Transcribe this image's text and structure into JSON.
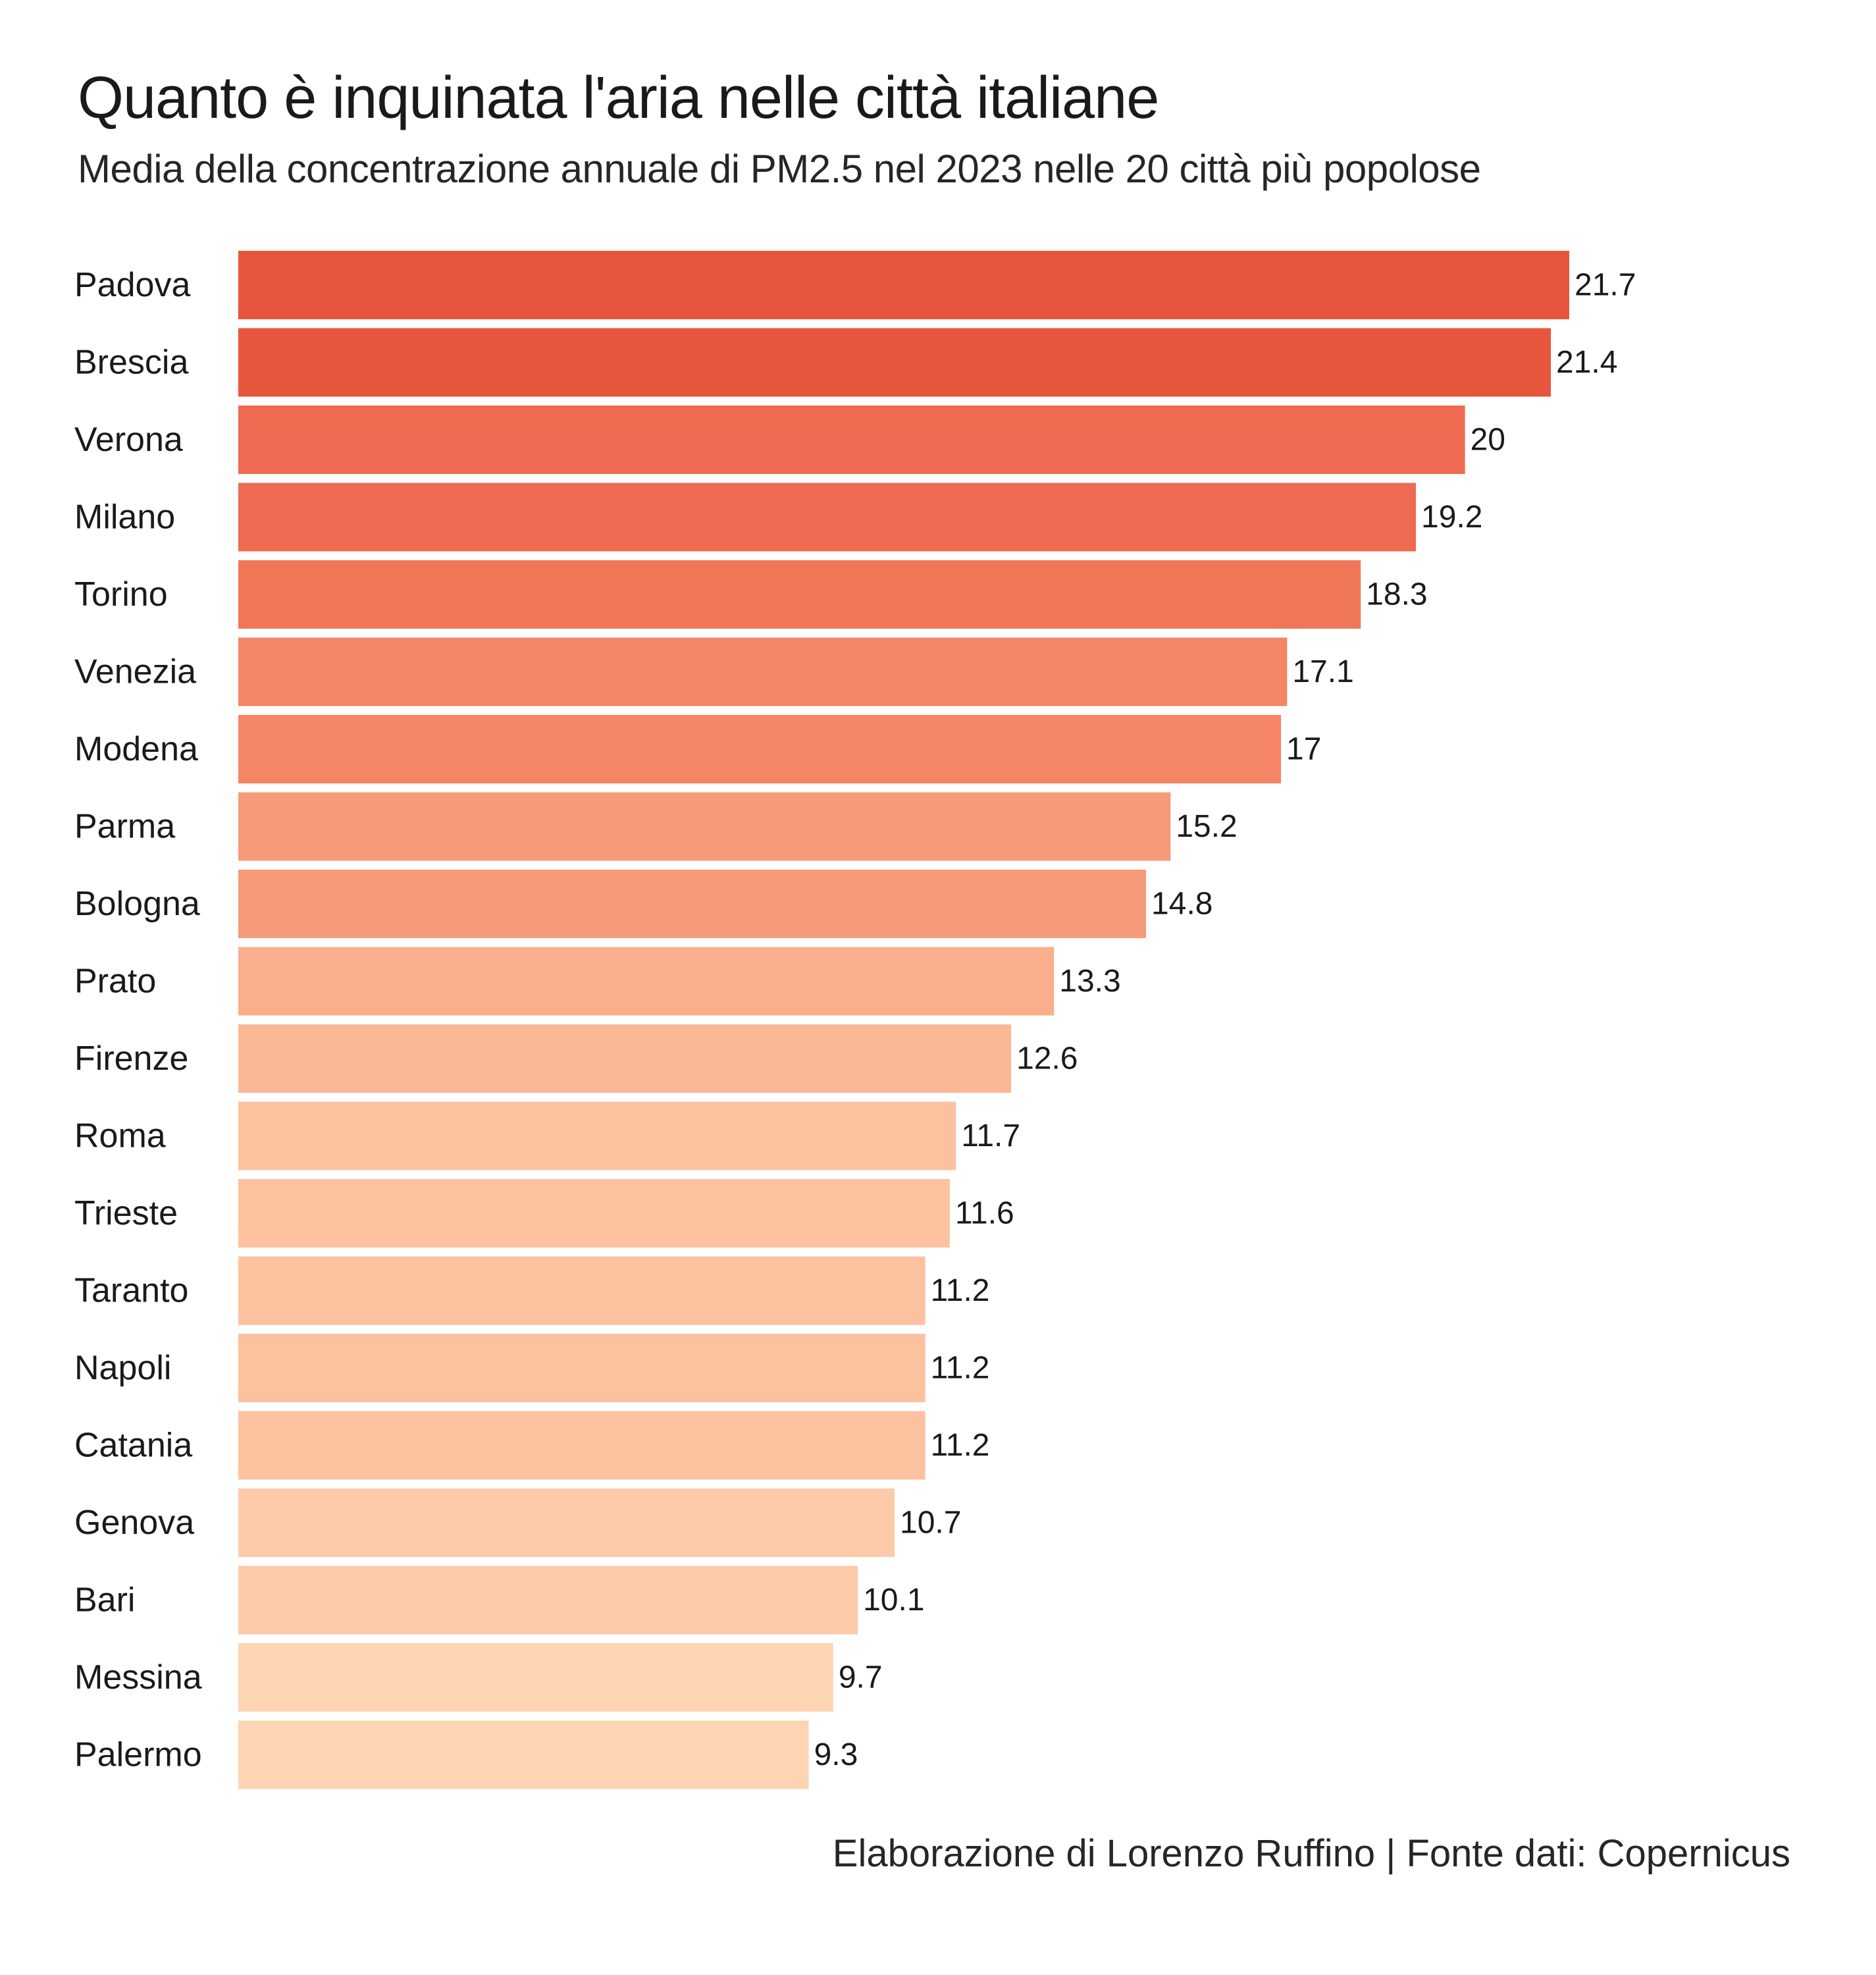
{
  "title": "Quanto è inquinata l'aria nelle città italiane",
  "subtitle": "Media della concentrazione annuale di PM2.5 nel 2023 nelle 20 città più popolose",
  "caption": "Elaborazione di Lorenzo Ruffino | Fonte dati: Copernicus",
  "chart_data": {
    "type": "bar",
    "orientation": "horizontal",
    "title": "Quanto è inquinata l'aria nelle città italiane",
    "subtitle": "Media della concentrazione annuale di PM2.5 nel 2023 nelle 20 città più popolose",
    "xlabel": "",
    "ylabel": "",
    "grid": false,
    "legend": "none",
    "xlim": [
      0,
      21.7
    ],
    "categories": [
      "Padova",
      "Brescia",
      "Verona",
      "Milano",
      "Torino",
      "Venezia",
      "Modena",
      "Parma",
      "Bologna",
      "Prato",
      "Firenze",
      "Roma",
      "Trieste",
      "Taranto",
      "Napoli",
      "Catania",
      "Genova",
      "Bari",
      "Messina",
      "Palermo"
    ],
    "values": [
      21.7,
      21.4,
      20,
      19.2,
      18.3,
      17.1,
      17,
      15.2,
      14.8,
      13.3,
      12.6,
      11.7,
      11.6,
      11.2,
      11.2,
      11.2,
      10.7,
      10.1,
      9.7,
      9.3
    ],
    "value_labels": [
      "21.7",
      "21.4",
      "20",
      "19.2",
      "18.3",
      "17.1",
      "17",
      "15.2",
      "14.8",
      "13.3",
      "12.6",
      "11.7",
      "11.6",
      "11.2",
      "11.2",
      "11.2",
      "10.7",
      "10.1",
      "9.7",
      "9.3"
    ],
    "colors": [
      "#E8553D",
      "#E8553D",
      "#EE6A50",
      "#EE6A50",
      "#F07858",
      "#F48565",
      "#F48565",
      "#F69B7A",
      "#F69B7A",
      "#F9AE8C",
      "#FBB896",
      "#FCC2A0",
      "#FCC2A0",
      "#FCC2A0",
      "#FCC2A0",
      "#FCC2A0",
      "#FDCBA9",
      "#FDCBA9",
      "#FDD5B2",
      "#FDD5B2"
    ]
  }
}
